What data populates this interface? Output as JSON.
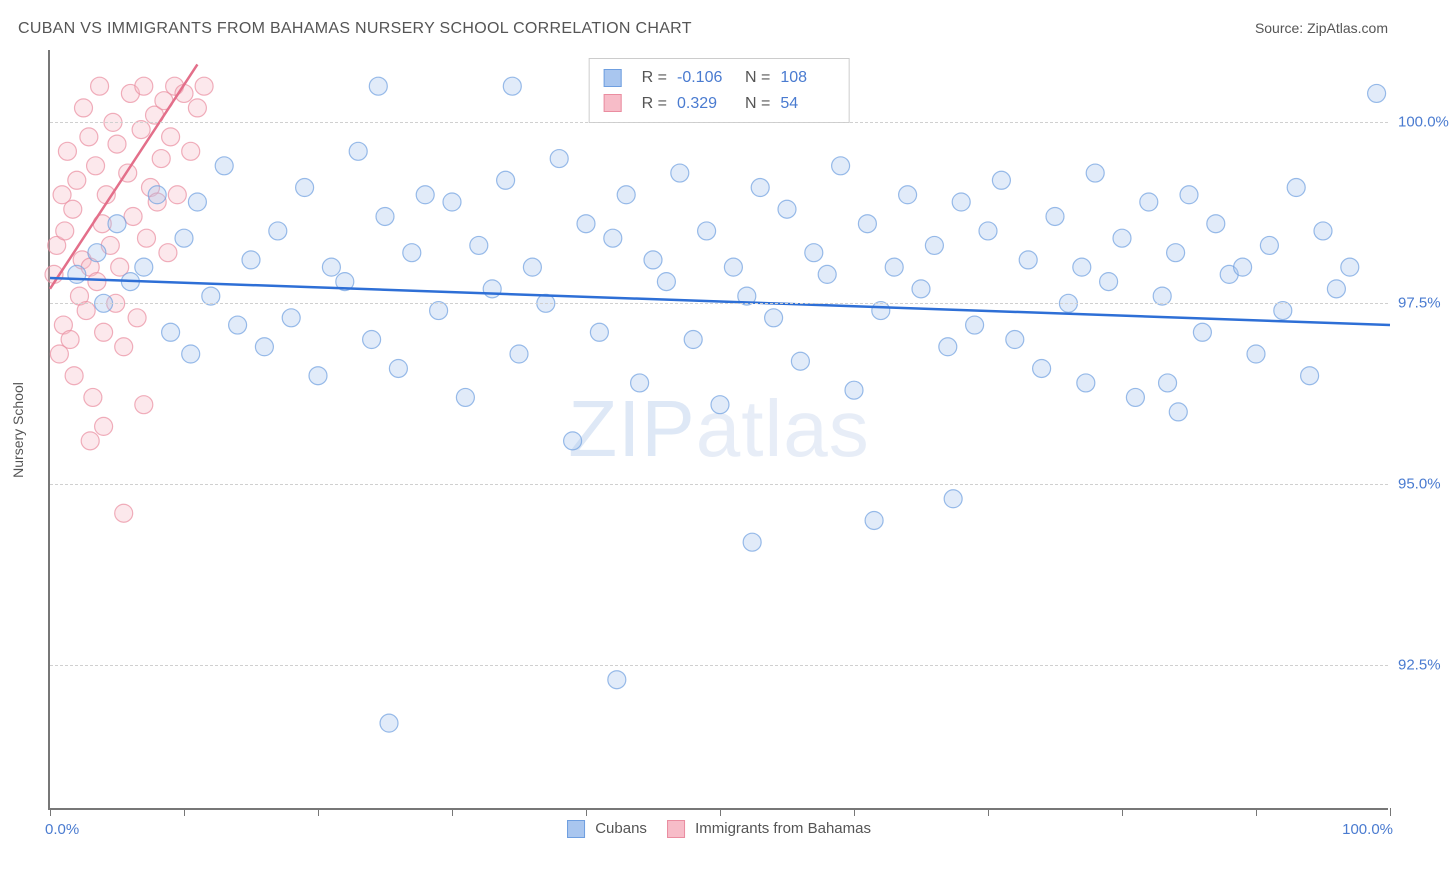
{
  "title": "CUBAN VS IMMIGRANTS FROM BAHAMAS NURSERY SCHOOL CORRELATION CHART",
  "source": "Source: ZipAtlas.com",
  "watermark_prefix": "ZIP",
  "watermark_suffix": "atlas",
  "axis": {
    "y_title": "Nursery School",
    "x_min_label": "0.0%",
    "x_max_label": "100.0%",
    "y_labels": [
      "92.5%",
      "95.0%",
      "97.5%",
      "100.0%"
    ],
    "xlim": [
      0,
      100
    ],
    "ylim": [
      90.5,
      101
    ]
  },
  "grid_color": "#d0d0d0",
  "axis_color": "#777777",
  "label_color": "#4a7bd0",
  "background_color": "#ffffff",
  "marker_radius": 9,
  "series": {
    "cubans": {
      "label": "Cubans",
      "color_fill": "#a9c6ef",
      "color_stroke": "#6f9fe0",
      "R": "-0.106",
      "N": "108",
      "trend": {
        "x1": 0,
        "y1": 97.85,
        "x2": 100,
        "y2": 97.2,
        "color": "#2e6fd6"
      },
      "points": [
        [
          2,
          97.9
        ],
        [
          3.5,
          98.2
        ],
        [
          4,
          97.5
        ],
        [
          5,
          98.6
        ],
        [
          6,
          97.8
        ],
        [
          7,
          98.0
        ],
        [
          8,
          99.0
        ],
        [
          9,
          97.1
        ],
        [
          10,
          98.4
        ],
        [
          10.5,
          96.8
        ],
        [
          11,
          98.9
        ],
        [
          12,
          97.6
        ],
        [
          13,
          99.4
        ],
        [
          14,
          97.2
        ],
        [
          15,
          98.1
        ],
        [
          16,
          96.9
        ],
        [
          17,
          98.5
        ],
        [
          18,
          97.3
        ],
        [
          19,
          99.1
        ],
        [
          20,
          96.5
        ],
        [
          21,
          98.0
        ],
        [
          22,
          97.8
        ],
        [
          23,
          99.6
        ],
        [
          24,
          97.0
        ],
        [
          24.5,
          100.5
        ],
        [
          25,
          98.7
        ],
        [
          25.3,
          91.7
        ],
        [
          26,
          96.6
        ],
        [
          27,
          98.2
        ],
        [
          28,
          99.0
        ],
        [
          29,
          97.4
        ],
        [
          30,
          98.9
        ],
        [
          31,
          96.2
        ],
        [
          32,
          98.3
        ],
        [
          33,
          97.7
        ],
        [
          34,
          99.2
        ],
        [
          34.5,
          100.5
        ],
        [
          35,
          96.8
        ],
        [
          36,
          98.0
        ],
        [
          37,
          97.5
        ],
        [
          38,
          99.5
        ],
        [
          39,
          95.6
        ],
        [
          40,
          98.6
        ],
        [
          41,
          97.1
        ],
        [
          42,
          98.4
        ],
        [
          42.3,
          92.3
        ],
        [
          43,
          99.0
        ],
        [
          44,
          96.4
        ],
        [
          45,
          98.1
        ],
        [
          46,
          97.8
        ],
        [
          47,
          99.3
        ],
        [
          48,
          97.0
        ],
        [
          49,
          98.5
        ],
        [
          50,
          96.1
        ],
        [
          51,
          98.0
        ],
        [
          52,
          97.6
        ],
        [
          52.4,
          94.2
        ],
        [
          53,
          99.1
        ],
        [
          54,
          97.3
        ],
        [
          55,
          98.8
        ],
        [
          56,
          96.7
        ],
        [
          57,
          98.2
        ],
        [
          58,
          97.9
        ],
        [
          59,
          99.4
        ],
        [
          60,
          96.3
        ],
        [
          61,
          98.6
        ],
        [
          61.5,
          94.5
        ],
        [
          62,
          97.4
        ],
        [
          63,
          98.0
        ],
        [
          64,
          99.0
        ],
        [
          65,
          97.7
        ],
        [
          66,
          98.3
        ],
        [
          67,
          96.9
        ],
        [
          67.4,
          94.8
        ],
        [
          68,
          98.9
        ],
        [
          69,
          97.2
        ],
        [
          70,
          98.5
        ],
        [
          71,
          99.2
        ],
        [
          72,
          97.0
        ],
        [
          73,
          98.1
        ],
        [
          74,
          96.6
        ],
        [
          75,
          98.7
        ],
        [
          76,
          97.5
        ],
        [
          77,
          98.0
        ],
        [
          77.3,
          96.4
        ],
        [
          78,
          99.3
        ],
        [
          79,
          97.8
        ],
        [
          80,
          98.4
        ],
        [
          81,
          96.2
        ],
        [
          82,
          98.9
        ],
        [
          83,
          97.6
        ],
        [
          83.4,
          96.4
        ],
        [
          84,
          98.2
        ],
        [
          84.2,
          96.0
        ],
        [
          85,
          99.0
        ],
        [
          86,
          97.1
        ],
        [
          87,
          98.6
        ],
        [
          88,
          97.9
        ],
        [
          89,
          98.0
        ],
        [
          90,
          96.8
        ],
        [
          91,
          98.3
        ],
        [
          92,
          97.4
        ],
        [
          93,
          99.1
        ],
        [
          94,
          96.5
        ],
        [
          95,
          98.5
        ],
        [
          96,
          97.7
        ],
        [
          97,
          98.0
        ],
        [
          99,
          100.4
        ]
      ]
    },
    "bahamas": {
      "label": "Immigrants from Bahamas",
      "color_fill": "#f7bcc8",
      "color_stroke": "#ea8da0",
      "R": "0.329",
      "N": "54",
      "trend": {
        "x1": 0,
        "y1": 97.7,
        "x2": 11,
        "y2": 100.8,
        "color": "#e36f8a"
      },
      "points": [
        [
          0.3,
          97.9
        ],
        [
          0.5,
          98.3
        ],
        [
          0.7,
          96.8
        ],
        [
          0.9,
          99.0
        ],
        [
          1.0,
          97.2
        ],
        [
          1.1,
          98.5
        ],
        [
          1.3,
          99.6
        ],
        [
          1.5,
          97.0
        ],
        [
          1.7,
          98.8
        ],
        [
          1.8,
          96.5
        ],
        [
          2.0,
          99.2
        ],
        [
          2.2,
          97.6
        ],
        [
          2.4,
          98.1
        ],
        [
          2.5,
          100.2
        ],
        [
          2.7,
          97.4
        ],
        [
          2.9,
          99.8
        ],
        [
          3.0,
          98.0
        ],
        [
          3.0,
          95.6
        ],
        [
          3.2,
          96.2
        ],
        [
          3.4,
          99.4
        ],
        [
          3.5,
          97.8
        ],
        [
          3.7,
          100.5
        ],
        [
          3.9,
          98.6
        ],
        [
          4.0,
          97.1
        ],
        [
          4.0,
          95.8
        ],
        [
          4.2,
          99.0
        ],
        [
          4.5,
          98.3
        ],
        [
          4.7,
          100.0
        ],
        [
          4.9,
          97.5
        ],
        [
          5.0,
          99.7
        ],
        [
          5.2,
          98.0
        ],
        [
          5.5,
          96.9
        ],
        [
          5.5,
          94.6
        ],
        [
          5.8,
          99.3
        ],
        [
          6.0,
          100.4
        ],
        [
          6.2,
          98.7
        ],
        [
          6.5,
          97.3
        ],
        [
          6.8,
          99.9
        ],
        [
          7.0,
          100.5
        ],
        [
          7.2,
          98.4
        ],
        [
          7.0,
          96.1
        ],
        [
          7.5,
          99.1
        ],
        [
          7.8,
          100.1
        ],
        [
          8.0,
          98.9
        ],
        [
          8.3,
          99.5
        ],
        [
          8.5,
          100.3
        ],
        [
          8.8,
          98.2
        ],
        [
          9.0,
          99.8
        ],
        [
          9.3,
          100.5
        ],
        [
          9.5,
          99.0
        ],
        [
          10.0,
          100.4
        ],
        [
          10.5,
          99.6
        ],
        [
          11.0,
          100.2
        ],
        [
          11.5,
          100.5
        ]
      ]
    }
  },
  "xticks_pct": [
    0,
    10,
    20,
    30,
    40,
    50,
    60,
    70,
    80,
    90,
    100
  ]
}
